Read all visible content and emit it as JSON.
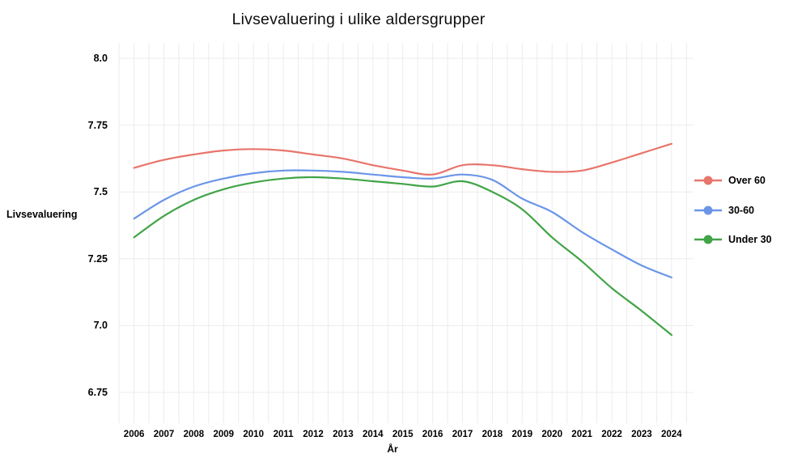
{
  "title": "Livsevaluering i ulike aldersgrupper",
  "chart_data": {
    "type": "line",
    "title": "Livsevaluering i ulike aldersgrupper",
    "xlabel": "År",
    "ylabel": "Livsevaluering",
    "x": [
      2006,
      2007,
      2008,
      2009,
      2010,
      2011,
      2012,
      2013,
      2014,
      2015,
      2016,
      2017,
      2018,
      2019,
      2020,
      2021,
      2022,
      2023,
      2024
    ],
    "series": [
      {
        "name": "Over 60",
        "color": "#E8756B",
        "values": [
          7.59,
          7.62,
          7.64,
          7.655,
          7.66,
          7.655,
          7.64,
          7.625,
          7.6,
          7.58,
          7.565,
          7.6,
          7.6,
          7.585,
          7.575,
          7.58,
          7.61,
          7.645,
          7.68
        ]
      },
      {
        "name": "30-60",
        "color": "#6B96E8",
        "values": [
          7.4,
          7.47,
          7.52,
          7.55,
          7.57,
          7.58,
          7.58,
          7.575,
          7.565,
          7.555,
          7.55,
          7.565,
          7.545,
          7.475,
          7.425,
          7.35,
          7.285,
          7.225,
          7.18
        ]
      },
      {
        "name": "Under 30",
        "color": "#41A447",
        "values": [
          7.33,
          7.41,
          7.47,
          7.51,
          7.535,
          7.55,
          7.555,
          7.55,
          7.54,
          7.53,
          7.52,
          7.54,
          7.5,
          7.435,
          7.33,
          7.24,
          7.14,
          7.055,
          6.965
        ]
      }
    ],
    "yticks": [
      "6.75",
      "7.0",
      "7.25",
      "7.5",
      "7.75",
      "8.0"
    ],
    "ylim": [
      6.64,
      8.06
    ],
    "xlim": [
      2005.5,
      2024.5
    ],
    "grid": true,
    "legend_position": "right"
  },
  "colors": {
    "grid": "#ECECEC",
    "text": "#000000",
    "title": "#0D0D0D",
    "background": "#FFFFFF"
  }
}
